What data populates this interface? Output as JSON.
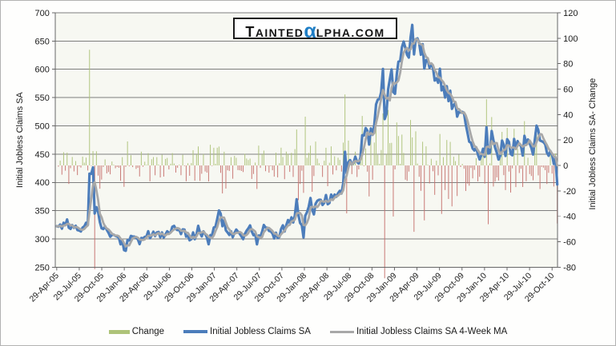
{
  "logo": {
    "lead": "T",
    "part1": "AINTED",
    "alpha": "α",
    "part2": "LPHA.COM",
    "alpha_color": "#1f7ec5"
  },
  "legend": {
    "items": [
      {
        "label": "Change",
        "color": "#aec379",
        "type": "bar"
      },
      {
        "label": "Initial Jobless Claims SA",
        "color": "#4c7dbb",
        "type": "line"
      },
      {
        "label": "Initial Jobless Claims SA 4-Week MA",
        "color": "#a8a8a8",
        "type": "line"
      }
    ]
  },
  "chart_data": {
    "type": "combo-bar-line",
    "x_tick_labels": [
      "29-Apr-05",
      "29-Jul-05",
      "29-Oct-05",
      "29-Jan-06",
      "29-Apr-06",
      "29-Jul-06",
      "29-Oct-06",
      "29-Jan-07",
      "29-Apr-07",
      "29-Jul-07",
      "29-Oct-07",
      "29-Jan-08",
      "29-Apr-08",
      "29-Jul-08",
      "29-Oct-08",
      "29-Jan-09",
      "29-Apr-09",
      "29-Jul-09",
      "29-Oct-09",
      "29-Jan-10",
      "29-Apr-10",
      "29-Jul-10",
      "29-Oct-10"
    ],
    "weeks_total": 291,
    "y_left": {
      "title": "Initial Jobless Claims SA",
      "min": 250,
      "max": 700,
      "step": 50,
      "ticks": [
        700,
        650,
        600,
        550,
        500,
        450,
        400,
        350,
        300,
        250
      ]
    },
    "y_right": {
      "title": "Initial Jobless Claims SA- Change",
      "min": -80,
      "max": 120,
      "step": 20,
      "ticks": [
        120,
        100,
        80,
        60,
        40,
        20,
        0,
        -20,
        -40,
        -60,
        -80
      ]
    },
    "series": {
      "claims": {
        "name": "Initial Jobless Claims SA",
        "type": "line",
        "axis": "left",
        "color": "#4c7dbb",
        "anchors_week_value": [
          [
            0,
            322
          ],
          [
            2,
            331
          ],
          [
            4,
            324
          ],
          [
            6,
            330
          ],
          [
            8,
            315
          ],
          [
            10,
            321
          ],
          [
            12,
            317
          ],
          [
            14,
            310
          ],
          [
            16,
            316
          ],
          [
            18,
            328
          ],
          [
            19,
            424
          ],
          [
            20,
            420
          ],
          [
            21,
            416
          ],
          [
            22,
            354
          ],
          [
            23,
            361
          ],
          [
            24,
            340
          ],
          [
            25,
            334
          ],
          [
            26,
            328
          ],
          [
            28,
            322
          ],
          [
            30,
            316
          ],
          [
            32,
            303
          ],
          [
            34,
            312
          ],
          [
            36,
            299
          ],
          [
            38,
            290
          ],
          [
            40,
            284
          ],
          [
            42,
            297
          ],
          [
            44,
            308
          ],
          [
            46,
            301
          ],
          [
            48,
            297
          ],
          [
            50,
            305
          ],
          [
            52,
            312
          ],
          [
            54,
            303
          ],
          [
            56,
            317
          ],
          [
            58,
            309
          ],
          [
            60,
            302
          ],
          [
            62,
            311
          ],
          [
            64,
            307
          ],
          [
            66,
            314
          ],
          [
            68,
            320
          ],
          [
            70,
            312
          ],
          [
            72,
            304
          ],
          [
            74,
            314
          ],
          [
            76,
            309
          ],
          [
            78,
            301
          ],
          [
            80,
            307
          ],
          [
            82,
            317
          ],
          [
            84,
            311
          ],
          [
            86,
            304
          ],
          [
            88,
            297
          ],
          [
            90,
            309
          ],
          [
            92,
            320
          ],
          [
            94,
            344
          ],
          [
            96,
            331
          ],
          [
            98,
            319
          ],
          [
            100,
            311
          ],
          [
            102,
            304
          ],
          [
            104,
            319
          ],
          [
            106,
            310
          ],
          [
            108,
            301
          ],
          [
            110,
            307
          ],
          [
            112,
            317
          ],
          [
            114,
            311
          ],
          [
            116,
            298
          ],
          [
            118,
            306
          ],
          [
            120,
            317
          ],
          [
            122,
            321
          ],
          [
            124,
            314
          ],
          [
            126,
            309
          ],
          [
            128,
            304
          ],
          [
            130,
            317
          ],
          [
            132,
            321
          ],
          [
            134,
            338
          ],
          [
            136,
            333
          ],
          [
            138,
            342
          ],
          [
            139,
            368
          ],
          [
            141,
            322
          ],
          [
            143,
            310
          ],
          [
            145,
            356
          ],
          [
            147,
            365
          ],
          [
            149,
            352
          ],
          [
            151,
            360
          ],
          [
            153,
            368
          ],
          [
            155,
            372
          ],
          [
            158,
            366
          ],
          [
            160,
            372
          ],
          [
            162,
            378
          ],
          [
            164,
            384
          ],
          [
            166,
            394
          ],
          [
            167,
            455
          ],
          [
            168,
            420
          ],
          [
            170,
            428
          ],
          [
            172,
            432
          ],
          [
            174,
            440
          ],
          [
            176,
            445
          ],
          [
            178,
            493
          ],
          [
            180,
            478
          ],
          [
            182,
            480
          ],
          [
            184,
            510
          ],
          [
            186,
            530
          ],
          [
            188,
            552
          ],
          [
            189,
            586
          ],
          [
            190,
            518
          ],
          [
            191,
            524
          ],
          [
            192,
            553
          ],
          [
            193,
            589
          ],
          [
            194,
            588
          ],
          [
            196,
            572
          ],
          [
            198,
            613
          ],
          [
            200,
            627
          ],
          [
            202,
            640
          ],
          [
            204,
            645
          ],
          [
            206,
            658
          ],
          [
            208,
            640
          ],
          [
            210,
            625
          ],
          [
            212,
            631
          ],
          [
            214,
            615
          ],
          [
            216,
            602
          ],
          [
            218,
            610
          ],
          [
            220,
            592
          ],
          [
            222,
            584
          ],
          [
            224,
            570
          ],
          [
            226,
            562
          ],
          [
            228,
            553
          ],
          [
            230,
            545
          ],
          [
            232,
            532
          ],
          [
            234,
            528
          ],
          [
            236,
            516
          ],
          [
            238,
            502
          ],
          [
            240,
            474
          ],
          [
            242,
            462
          ],
          [
            244,
            455
          ],
          [
            246,
            440
          ],
          [
            248,
            450
          ],
          [
            249,
            482
          ],
          [
            250,
            462
          ],
          [
            251,
            458
          ],
          [
            252,
            496
          ],
          [
            253,
            462
          ],
          [
            254,
            453
          ],
          [
            256,
            448
          ],
          [
            258,
            460
          ],
          [
            260,
            450
          ],
          [
            261,
            480
          ],
          [
            263,
            448
          ],
          [
            265,
            471
          ],
          [
            267,
            460
          ],
          [
            269,
            472
          ],
          [
            270,
            446
          ],
          [
            271,
            484
          ],
          [
            273,
            460
          ],
          [
            274,
            482
          ],
          [
            275,
            457
          ],
          [
            277,
            468
          ],
          [
            278,
            500
          ],
          [
            279,
            478
          ],
          [
            280,
            473
          ],
          [
            282,
            462
          ],
          [
            284,
            453
          ],
          [
            285,
            455
          ],
          [
            286,
            465
          ],
          [
            287,
            452
          ],
          [
            288,
            441
          ],
          [
            289,
            436
          ],
          [
            290,
            407
          ]
        ]
      },
      "ma": {
        "name": "Initial Jobless Claims SA 4-Week MA",
        "type": "line",
        "axis": "left",
        "color": "#a8a8a8",
        "derivation": "4-week moving average of claims"
      },
      "change": {
        "name": "Change",
        "type": "bar",
        "axis": "right",
        "color_positive": "#aec379",
        "color_negative": "#c7736f",
        "derivation": "week-over-week change of claims"
      }
    },
    "noise": {
      "seed": 2,
      "base": 8,
      "scale": 0.05
    },
    "colors": {
      "grid": "#7e7e7e",
      "axis": "#666666",
      "text": "#1a1a1a",
      "plot_bg": "#f7f8f2"
    }
  }
}
